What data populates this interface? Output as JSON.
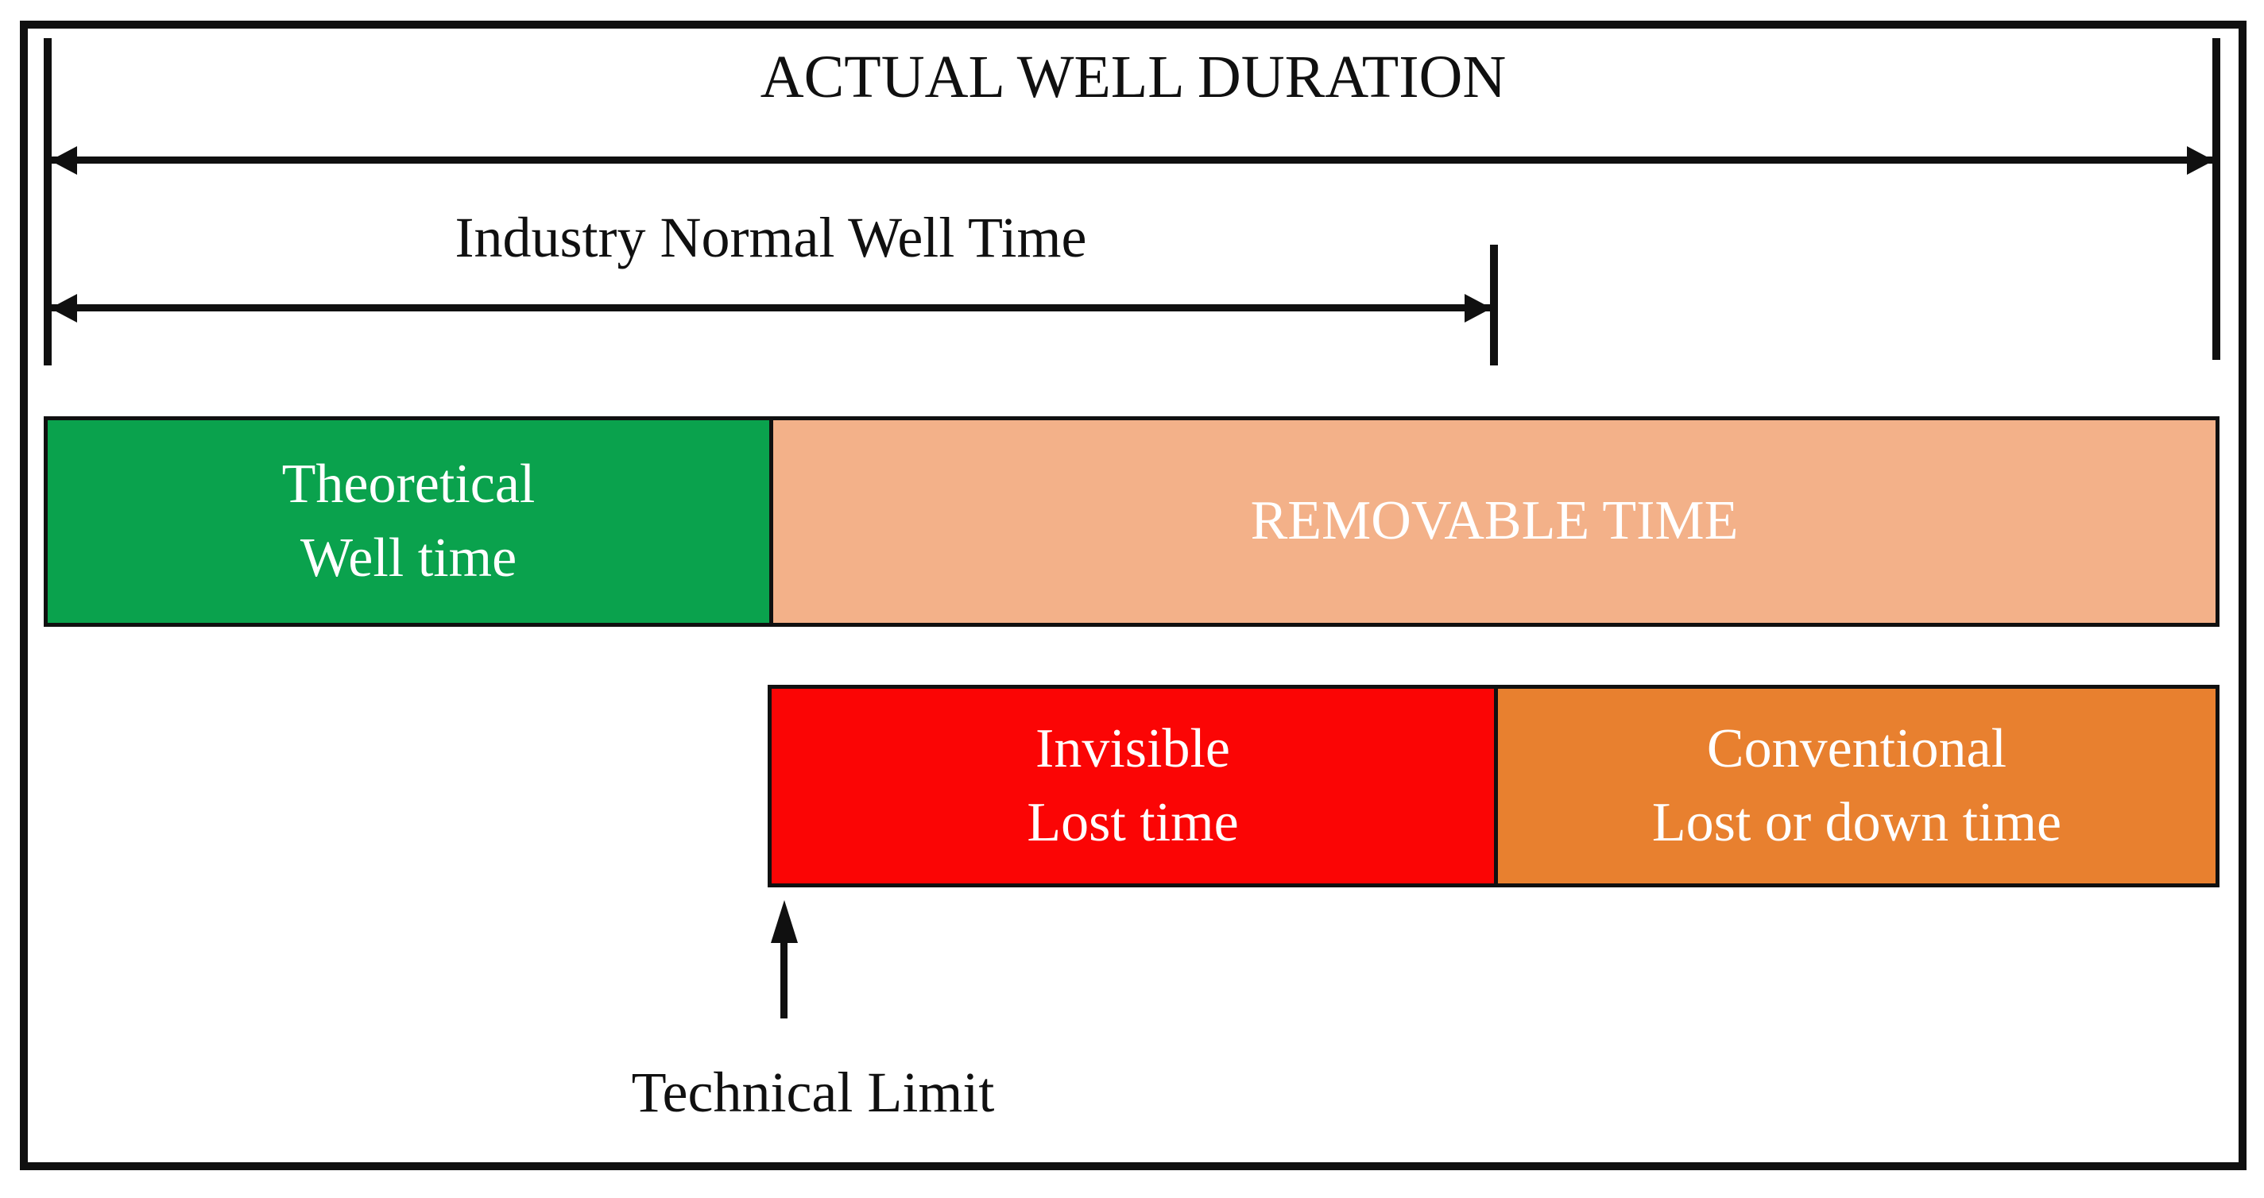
{
  "colors": {
    "ink": "#101010",
    "background": "#FFFFFF",
    "theoretical_green": "#0AA24D",
    "removable_peach": "#F3B189",
    "invisible_red": "#FB0505",
    "conventional_orange": "#E8802F",
    "bar_text": "#FFFFFF"
  },
  "header": {
    "title": "ACTUAL WELL DURATION",
    "industry_span_label": "Industry Normal Well Time"
  },
  "bars": {
    "well_time": {
      "segments": [
        {
          "id": "theoretical",
          "lines": [
            "Theoretical",
            "Well time"
          ],
          "color": "#0AA24D"
        },
        {
          "id": "removable",
          "lines": [
            "REMOVABLE TIME"
          ],
          "color": "#F3B189"
        }
      ]
    },
    "lost_time": {
      "segments": [
        {
          "id": "invisible",
          "lines": [
            "Invisible",
            "Lost time"
          ],
          "color": "#FB0505"
        },
        {
          "id": "conventional",
          "lines": [
            "Conventional",
            "Lost or down time"
          ],
          "color": "#E8802F"
        }
      ]
    }
  },
  "annotations": {
    "technical_limit": "Technical Limit"
  }
}
